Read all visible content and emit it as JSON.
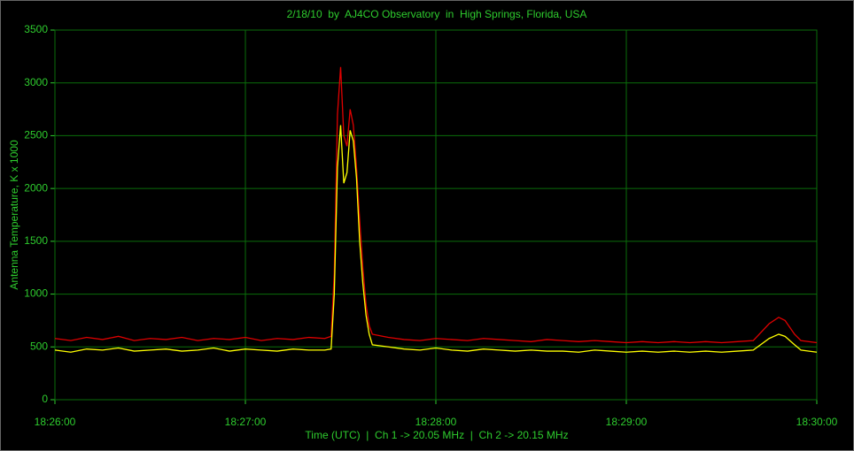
{
  "chart_data": {
    "type": "line",
    "title": "2/18/10  by  AJ4CO Observatory  in  High Springs, Florida, USA",
    "x_label": "Time (UTC)  |  Ch 1 -> 20.05 MHz  |  Ch 2 -> 20.15 MHz",
    "y_label": "Antenna Temperature, K x 1000",
    "x": [
      "18:26:00",
      "18:26:05",
      "18:26:10",
      "18:26:15",
      "18:26:20",
      "18:26:25",
      "18:26:30",
      "18:26:35",
      "18:26:40",
      "18:26:45",
      "18:26:50",
      "18:26:55",
      "18:27:00",
      "18:27:05",
      "18:27:10",
      "18:27:15",
      "18:27:20",
      "18:27:25",
      "18:27:27",
      "18:27:28",
      "18:27:29",
      "18:27:30",
      "18:27:31",
      "18:27:32",
      "18:27:33",
      "18:27:34",
      "18:27:35",
      "18:27:36",
      "18:27:37",
      "18:27:38",
      "18:27:39",
      "18:27:40",
      "18:27:45",
      "18:27:50",
      "18:27:55",
      "18:28:00",
      "18:28:05",
      "18:28:10",
      "18:28:15",
      "18:28:20",
      "18:28:25",
      "18:28:30",
      "18:28:35",
      "18:28:40",
      "18:28:45",
      "18:28:50",
      "18:28:55",
      "18:29:00",
      "18:29:05",
      "18:29:10",
      "18:29:15",
      "18:29:20",
      "18:29:25",
      "18:29:30",
      "18:29:35",
      "18:29:40",
      "18:29:45",
      "18:29:48",
      "18:29:50",
      "18:29:53",
      "18:29:55",
      "18:30:00"
    ],
    "series": [
      {
        "color": "#e00000",
        "values": [
          580,
          560,
          590,
          570,
          600,
          560,
          580,
          570,
          590,
          560,
          580,
          570,
          590,
          560,
          580,
          570,
          590,
          580,
          600,
          1200,
          2700,
          3150,
          2500,
          2400,
          2750,
          2600,
          2200,
          1700,
          1250,
          900,
          700,
          620,
          590,
          570,
          560,
          580,
          570,
          560,
          580,
          570,
          560,
          550,
          570,
          560,
          550,
          560,
          550,
          540,
          550,
          540,
          550,
          540,
          550,
          540,
          550,
          560,
          720,
          780,
          750,
          620,
          560,
          540
        ]
      },
      {
        "color": "#ffff00",
        "values": [
          470,
          450,
          480,
          470,
          490,
          460,
          470,
          480,
          460,
          470,
          490,
          460,
          480,
          470,
          460,
          480,
          470,
          470,
          480,
          1000,
          2200,
          2600,
          2050,
          2150,
          2550,
          2450,
          2100,
          1500,
          1100,
          800,
          620,
          520,
          500,
          480,
          470,
          490,
          470,
          460,
          480,
          470,
          460,
          470,
          460,
          460,
          450,
          470,
          460,
          450,
          460,
          450,
          460,
          450,
          460,
          450,
          460,
          470,
          580,
          620,
          600,
          520,
          470,
          450
        ]
      }
    ],
    "xlim": [
      "18:26:00",
      "18:30:00"
    ],
    "xticks": [
      "18:26:00",
      "18:27:00",
      "18:28:00",
      "18:29:00",
      "18:30:00"
    ],
    "ylim": [
      0,
      3500
    ],
    "yticks": [
      0,
      500,
      1000,
      1500,
      2000,
      2500,
      3000,
      3500
    ],
    "grid": true
  }
}
